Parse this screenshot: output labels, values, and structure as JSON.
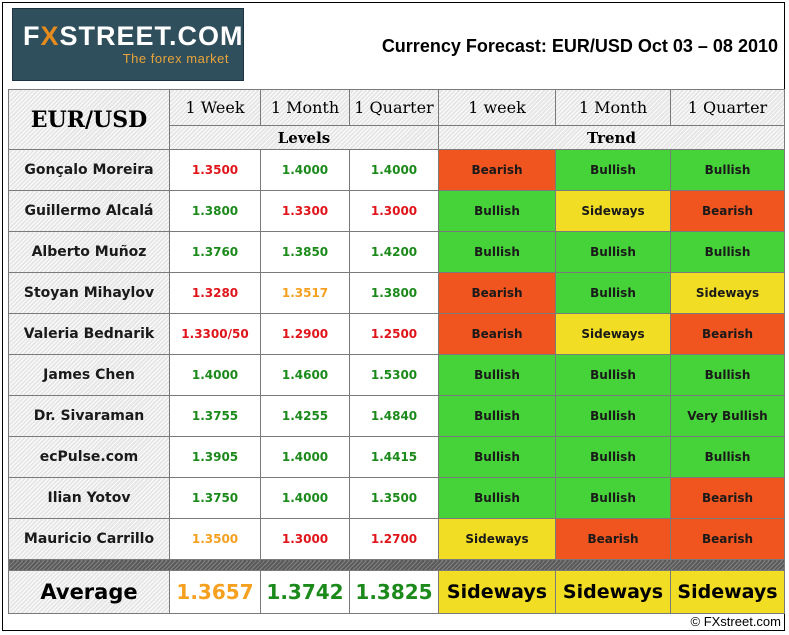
{
  "logo": {
    "brand_prefix": "F",
    "brand_x": "X",
    "brand_rest": "STREET.COM",
    "tagline": "The forex market"
  },
  "title": "Currency Forecast: EUR/USD Oct 03 – 08 2010",
  "header": {
    "pair": "EUR/USD",
    "columns": [
      "1 Week",
      "1 Month",
      "1 Quarter",
      "1 week",
      "1 Month",
      "1 Quarter"
    ],
    "levels_label": "Levels",
    "trend_label": "Trend"
  },
  "colors": {
    "green_text": "#1b8a1b",
    "red_text": "#e0151b",
    "orange_text": "#f5a01e",
    "bearish_bg": "#f0541f",
    "bullish_bg": "#46d339",
    "sideways_bg": "#f2dd25"
  },
  "rows": [
    {
      "name": "Gonçalo Moreira",
      "levels": [
        {
          "value": "1.3500",
          "color": "red"
        },
        {
          "value": "1.4000",
          "color": "green"
        },
        {
          "value": "1.4000",
          "color": "green"
        }
      ],
      "trends": [
        "Bearish",
        "Bullish",
        "Bullish"
      ]
    },
    {
      "name": "Guillermo Alcalá",
      "levels": [
        {
          "value": "1.3800",
          "color": "green"
        },
        {
          "value": "1.3300",
          "color": "red"
        },
        {
          "value": "1.3000",
          "color": "red"
        }
      ],
      "trends": [
        "Bullish",
        "Sideways",
        "Bearish"
      ]
    },
    {
      "name": "Alberto Muñoz",
      "levels": [
        {
          "value": "1.3760",
          "color": "green"
        },
        {
          "value": "1.3850",
          "color": "green"
        },
        {
          "value": "1.4200",
          "color": "green"
        }
      ],
      "trends": [
        "Bullish",
        "Bullish",
        "Bullish"
      ]
    },
    {
      "name": "Stoyan Mihaylov",
      "levels": [
        {
          "value": "1.3280",
          "color": "red"
        },
        {
          "value": "1.3517",
          "color": "orange"
        },
        {
          "value": "1.3800",
          "color": "green"
        }
      ],
      "trends": [
        "Bearish",
        "Bullish",
        "Sideways"
      ]
    },
    {
      "name": "Valeria Bednarik",
      "levels": [
        {
          "value": "1.3300/50",
          "color": "red"
        },
        {
          "value": "1.2900",
          "color": "red"
        },
        {
          "value": "1.2500",
          "color": "red"
        }
      ],
      "trends": [
        "Bearish",
        "Sideways",
        "Bearish"
      ]
    },
    {
      "name": "James Chen",
      "levels": [
        {
          "value": "1.4000",
          "color": "green"
        },
        {
          "value": "1.4600",
          "color": "green"
        },
        {
          "value": "1.5300",
          "color": "green"
        }
      ],
      "trends": [
        "Bullish",
        "Bullish",
        "Bullish"
      ]
    },
    {
      "name": "Dr. Sivaraman",
      "levels": [
        {
          "value": "1.3755",
          "color": "green"
        },
        {
          "value": "1.4255",
          "color": "green"
        },
        {
          "value": "1.4840",
          "color": "green"
        }
      ],
      "trends": [
        "Bullish",
        "Bullish",
        "Very Bullish"
      ]
    },
    {
      "name": "ecPulse.com",
      "levels": [
        {
          "value": "1.3905",
          "color": "green"
        },
        {
          "value": "1.4000",
          "color": "green"
        },
        {
          "value": "1.4415",
          "color": "green"
        }
      ],
      "trends": [
        "Bullish",
        "Bullish",
        "Bullish"
      ]
    },
    {
      "name": "Ilian Yotov",
      "levels": [
        {
          "value": "1.3750",
          "color": "green"
        },
        {
          "value": "1.4000",
          "color": "green"
        },
        {
          "value": "1.3500",
          "color": "green"
        }
      ],
      "trends": [
        "Bullish",
        "Bullish",
        "Bearish"
      ]
    },
    {
      "name": "Mauricio Carrillo",
      "levels": [
        {
          "value": "1.3500",
          "color": "orange"
        },
        {
          "value": "1.3000",
          "color": "red"
        },
        {
          "value": "1.2700",
          "color": "red"
        }
      ],
      "trends": [
        "Sideways",
        "Bearish",
        "Bearish"
      ]
    }
  ],
  "average": {
    "label": "Average",
    "levels": [
      {
        "value": "1.3657",
        "color": "orange"
      },
      {
        "value": "1.3742",
        "color": "green"
      },
      {
        "value": "1.3825",
        "color": "green"
      }
    ],
    "trends": [
      "Sideways",
      "Sideways",
      "Sideways"
    ]
  },
  "credit": "© FXstreet.com"
}
